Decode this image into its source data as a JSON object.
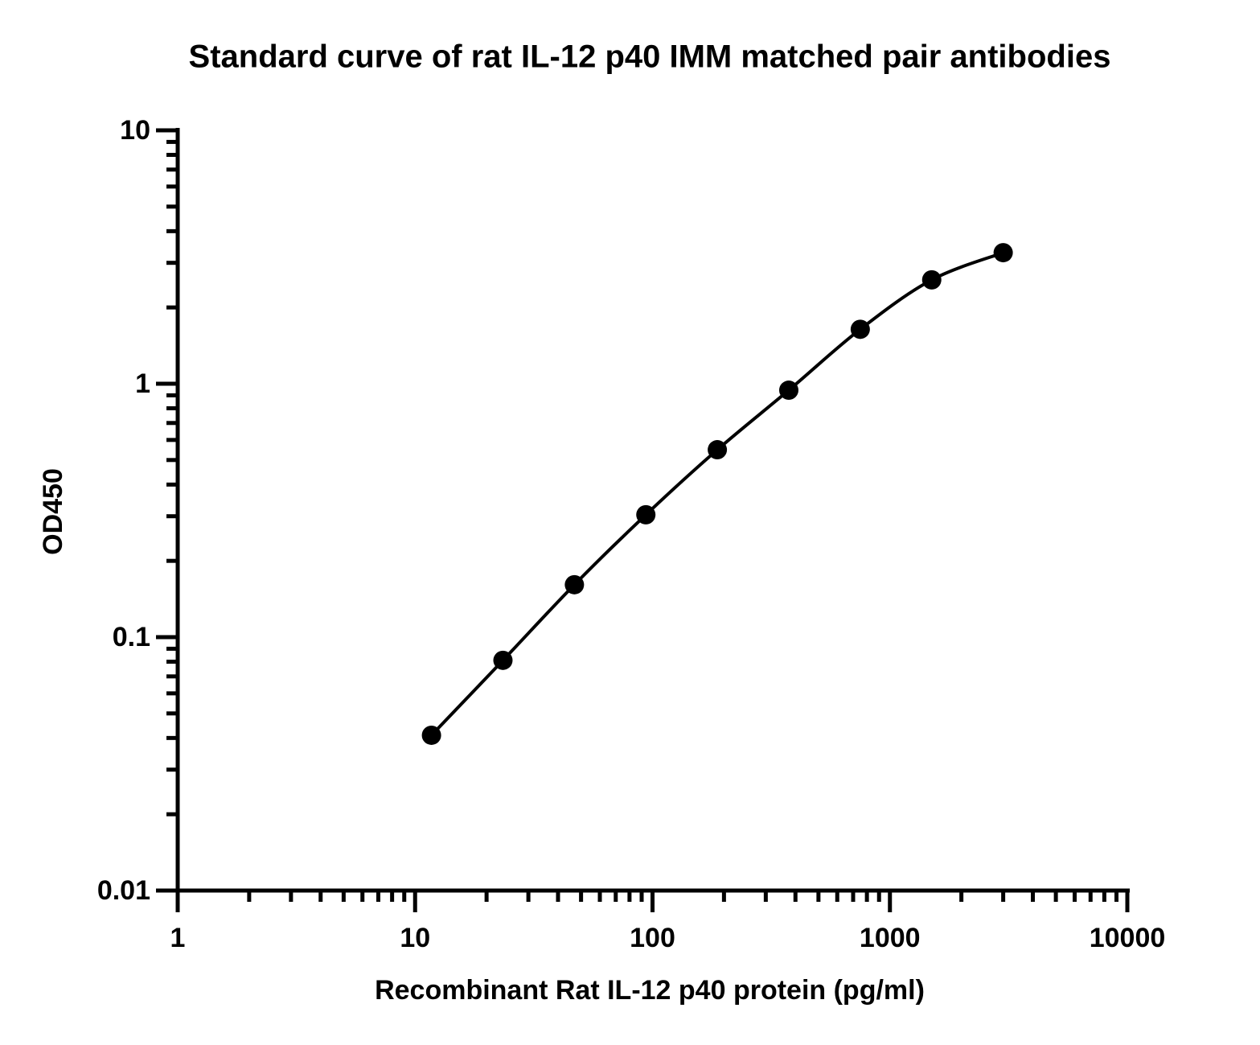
{
  "chart_data": {
    "type": "line",
    "title": "Standard curve of rat IL-12 p40 IMM matched pair antibodies",
    "x_label": "Recombinant Rat IL-12 p40 protein (pg/ml)",
    "y_label": "OD450",
    "x": [
      11.72,
      23.44,
      46.88,
      93.75,
      187.5,
      375,
      750,
      1500,
      3000
    ],
    "values": [
      0.041,
      0.081,
      0.161,
      0.304,
      0.549,
      0.943,
      1.64,
      2.57,
      3.29
    ],
    "color": "#000000",
    "xlim": [
      1,
      10000
    ],
    "xticks": [
      1,
      10,
      100,
      1000,
      10000
    ],
    "ylim": [
      0.01,
      10
    ],
    "yticks": [
      0.01,
      0.1,
      1,
      10
    ],
    "xscale": "log",
    "yscale": "log",
    "markers": true,
    "grid": false
  }
}
